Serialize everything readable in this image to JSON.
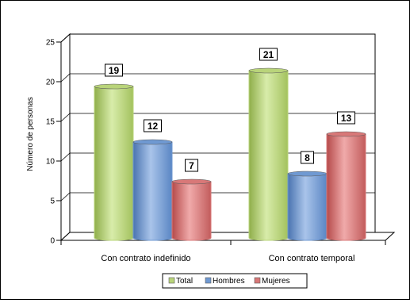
{
  "chart_data": {
    "type": "bar",
    "title": "",
    "xlabel": "",
    "ylabel": "Número de personas",
    "ylim": [
      0,
      25
    ],
    "yticks": [
      0,
      5,
      10,
      15,
      20,
      25
    ],
    "categories": [
      "Con contrato indefinido",
      "Con contrato temporal"
    ],
    "series": [
      {
        "name": "Total",
        "values": [
          19,
          21
        ],
        "color": "#b9d47a"
      },
      {
        "name": "Hombres",
        "values": [
          12,
          8
        ],
        "color": "#6f99d2"
      },
      {
        "name": "Mujeres",
        "values": [
          7,
          13
        ],
        "color": "#d87878"
      }
    ],
    "grid": true,
    "legend_position": "bottom",
    "data_labels": true,
    "style": "3d-cylinder"
  }
}
